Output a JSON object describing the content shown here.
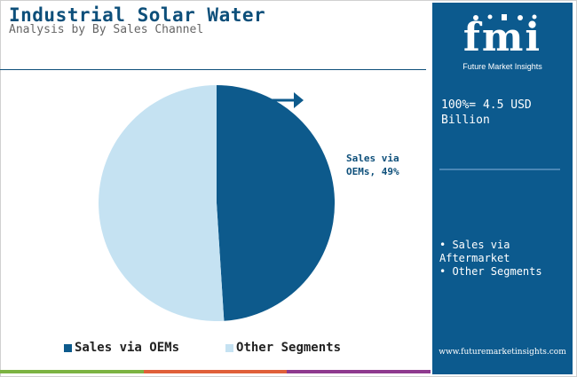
{
  "header": {
    "title": "Industrial Solar Water",
    "subtitle": "Analysis by By Sales Channel"
  },
  "colors": {
    "oems": "#0d5a8c",
    "other": "#c5e2f2",
    "panel": "#0c5a8e",
    "bottom_bar": [
      "#7cb342",
      "#e0603a",
      "#8e3a8e"
    ]
  },
  "chart_data": {
    "type": "pie",
    "title": "Industrial Solar Water",
    "subtitle": "Analysis by By Sales Channel",
    "slices": [
      {
        "name": "Sales via OEMs",
        "value": 49
      },
      {
        "name": "Other Segments",
        "value": 51
      }
    ],
    "slice_label": "Sales via OEMs, 49%",
    "legend_position": "bottom"
  },
  "legend": {
    "items": [
      {
        "label": "Sales via OEMs"
      },
      {
        "label": "Other Segments"
      }
    ]
  },
  "side_panel": {
    "logo_text": "fmi",
    "logo_subtitle": "Future Market Insights",
    "total_label": "100%= 4.5 USD Billion",
    "legend_items": [
      "Sales via Aftermarket",
      "Other Segments"
    ],
    "website": "www.futuremarketinsights.com"
  }
}
